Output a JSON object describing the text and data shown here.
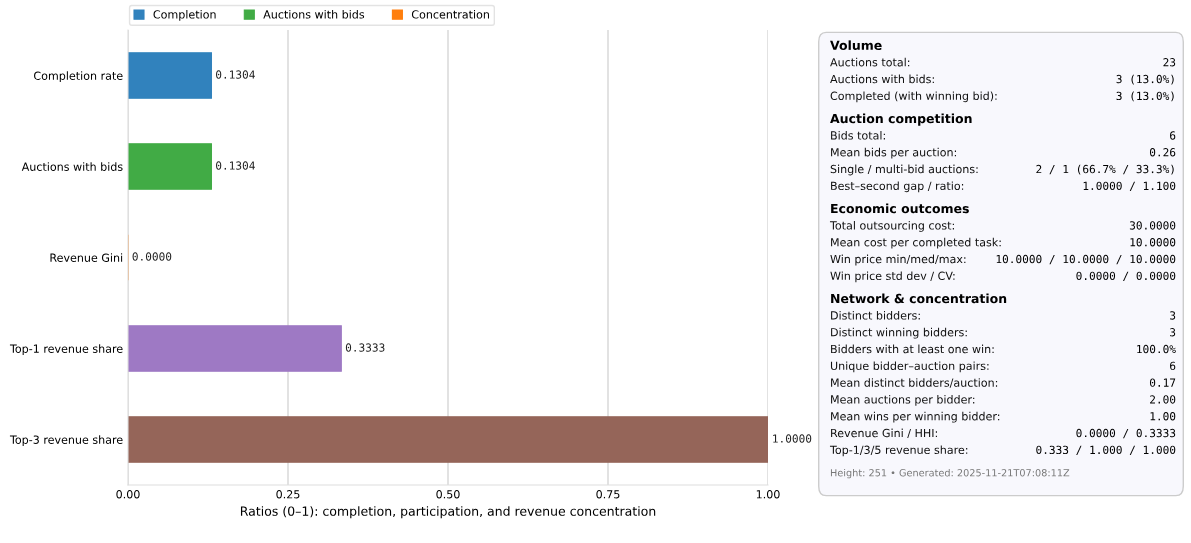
{
  "chart_data": [
    {
      "type": "bar",
      "orientation": "horizontal",
      "xlabel": "Ratios (0–1): completion, participation, and revenue concentration",
      "categories": [
        "Completion rate",
        "Auctions with bids",
        "Revenue Gini",
        "Top-1 revenue share",
        "Top-3 revenue share"
      ],
      "series": [
        {
          "name": "Completion",
          "color": "#3182bd",
          "values": [
            0.1304,
            null,
            null,
            null,
            null
          ],
          "value_labels": [
            "0.1304",
            null,
            null,
            null,
            null
          ]
        },
        {
          "name": "Auctions with bids",
          "color": "#41ab45",
          "values": [
            null,
            0.1304,
            null,
            null,
            null
          ],
          "value_labels": [
            null,
            "0.1304",
            null,
            null,
            null
          ]
        },
        {
          "name": "Concentration",
          "color": "#ff7f0e",
          "colors": [
            null,
            null,
            null,
            "#9e79c4",
            "#956559"
          ],
          "values": [
            null,
            null,
            0.0,
            0.3333,
            1.0
          ],
          "value_labels": [
            null,
            null,
            "0.0000",
            "0.3333",
            "1.0000"
          ]
        }
      ],
      "xlim": [
        0,
        1
      ],
      "xticks": [
        {
          "value": 0,
          "label": "0.00"
        },
        {
          "value": 0.25,
          "label": "0.25"
        },
        {
          "value": 0.5,
          "label": "0.50"
        },
        {
          "value": 0.75,
          "label": "0.75"
        },
        {
          "value": 1,
          "label": "1.00"
        }
      ],
      "grid": "x",
      "legend": "top left"
    },
    {
      "type": "other",
      "title": "Volume",
      "annotations": [
        "Auctions total: 23",
        "Auctions with bids: 3 (13.0%)",
        "Completed (with winning bid): 3 (13.0%)"
      ]
    },
    {
      "type": "other",
      "title": "Auction competition",
      "annotations": [
        "Bids total: 6",
        "Mean bids per auction: 0.26",
        "Single / multi-bid auctions: 2 / 1 (66.7% / 33.3%)",
        "Best–second gap / ratio: 1.0000 / 1.100"
      ]
    },
    {
      "type": "other",
      "title": "Economic outcomes",
      "annotations": [
        "Total outsourcing cost: 30.0000",
        "Mean cost per completed task: 10.0000",
        "Win price min/med/max: 10.0000 / 10.0000 / 10.0000",
        "Win price std dev / CV: 0.0000 / 0.0000"
      ]
    },
    {
      "type": "other",
      "title": "Network & concentration",
      "annotations": [
        "Distinct bidders: 3",
        "Distinct winning bidders: 3",
        "Bidders with at least one win: 100.0%",
        "Unique bidder–auction pairs: 6",
        "Mean distinct bidders/auction: 0.17",
        "Mean auctions per bidder: 2.00",
        "Mean wins per winning bidder: 1.00",
        "Revenue Gini / HHI: 0.0000 / 0.3333",
        "Top-1/3/5 revenue share: 0.333 / 1.000 / 1.000"
      ]
    },
    {
      "type": "other",
      "annotations": [
        "Height: 251 • Generated: 2025-11-21T07:08:11Z"
      ]
    }
  ]
}
